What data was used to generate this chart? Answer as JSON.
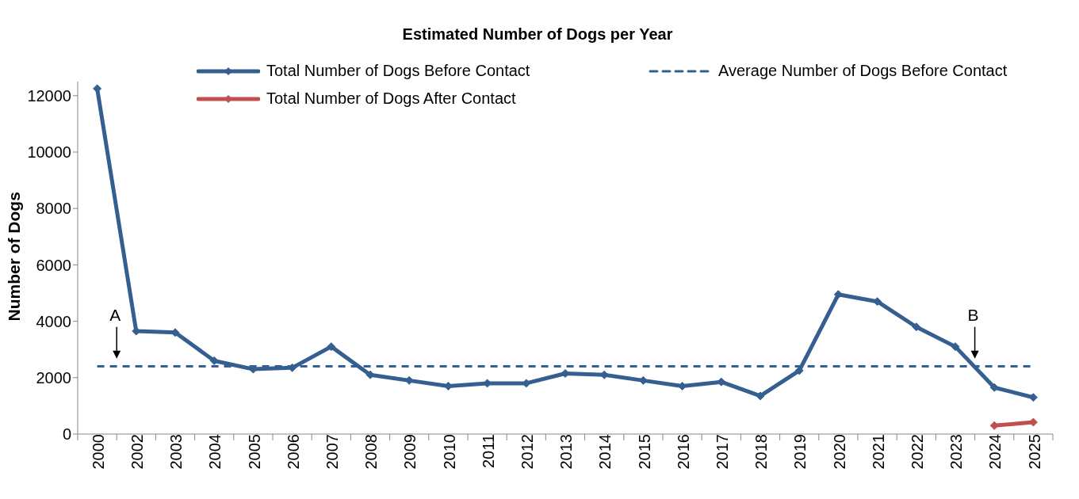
{
  "chart_data": {
    "type": "line",
    "title": "Estimated Number of Dogs per Year",
    "ylabel": "Number of Dogs",
    "categories": [
      "2000",
      "2002",
      "2003",
      "2004",
      "2005",
      "2006",
      "2007",
      "2008",
      "2009",
      "2010",
      "2011",
      "2012",
      "2013",
      "2014",
      "2015",
      "2016",
      "2017",
      "2018",
      "2019",
      "2020",
      "2021",
      "2022",
      "2023",
      "2024",
      "2025"
    ],
    "series": [
      {
        "name": "Total Number of Dogs Before Contact",
        "color": "#365f91",
        "marker": "diamond",
        "line_style": "solid",
        "values": [
          12250,
          3650,
          3600,
          2600,
          2300,
          2350,
          3100,
          2100,
          1900,
          1700,
          1800,
          1800,
          2150,
          2100,
          1900,
          1700,
          1850,
          1350,
          2250,
          4950,
          4700,
          3800,
          3100,
          1650,
          1300
        ]
      },
      {
        "name": "Average Number of Dogs Before Contact",
        "color": "#365f91",
        "marker": "none",
        "line_style": "dashed",
        "values": [
          2400,
          2400,
          2400,
          2400,
          2400,
          2400,
          2400,
          2400,
          2400,
          2400,
          2400,
          2400,
          2400,
          2400,
          2400,
          2400,
          2400,
          2400,
          2400,
          2400,
          2400,
          2400,
          2400,
          2400,
          2400
        ]
      },
      {
        "name": "Total Number of Dogs After Contact",
        "color": "#c0504d",
        "marker": "diamond",
        "line_style": "solid",
        "values": [
          null,
          null,
          null,
          null,
          null,
          null,
          null,
          null,
          null,
          null,
          null,
          null,
          null,
          null,
          null,
          null,
          null,
          null,
          null,
          null,
          null,
          null,
          null,
          300,
          420
        ]
      }
    ],
    "ylim": [
      0,
      12500
    ],
    "yticks": [
      0,
      2000,
      4000,
      6000,
      8000,
      10000,
      12000
    ],
    "annotations": [
      "A",
      "B"
    ],
    "legend": "top",
    "grid": false
  }
}
